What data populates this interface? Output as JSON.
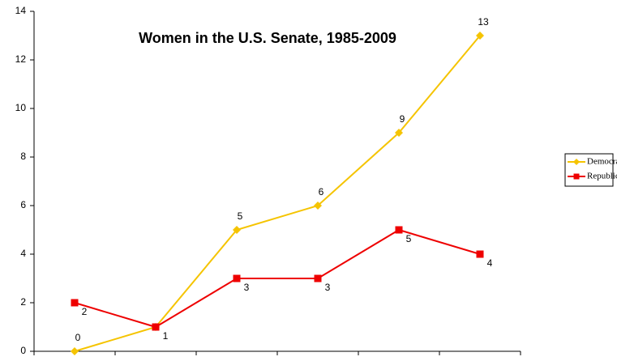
{
  "chart_data": {
    "type": "line",
    "title": "Women in the U.S. Senate, 1985-2009",
    "categories": [
      null,
      null,
      null,
      null,
      null,
      null
    ],
    "series": [
      {
        "name": "Democrats",
        "color": "#f5c400",
        "marker": "diamond",
        "values": [
          0,
          1,
          5,
          6,
          9,
          13
        ]
      },
      {
        "name": "Republicans",
        "color": "#ee0000",
        "marker": "square",
        "values": [
          2,
          1,
          3,
          3,
          5,
          4
        ]
      }
    ],
    "ylim": [
      0,
      14
    ],
    "yticks": [
      0,
      2,
      4,
      6,
      8,
      10,
      12,
      14
    ],
    "grid": false,
    "legend": "right",
    "data_labels": true
  }
}
